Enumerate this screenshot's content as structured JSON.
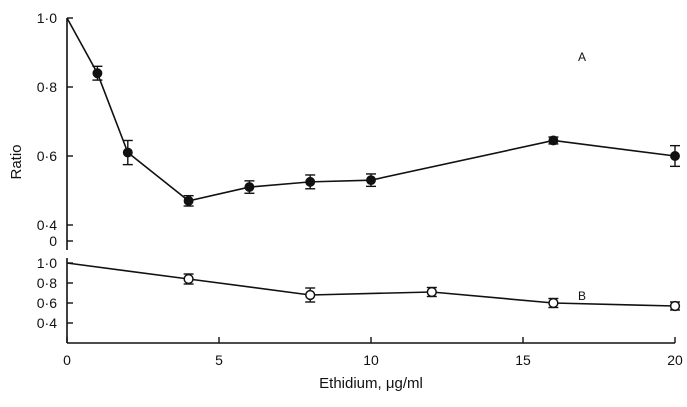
{
  "chart_data": [
    {
      "panel": "A",
      "type": "line",
      "marker": "filled-circle",
      "error_bars": true,
      "ylabel": "Ratio",
      "ylim": [
        0,
        1.0
      ],
      "yticks": [
        "0",
        "0·4",
        "0·6",
        "0·8",
        "1·0"
      ],
      "ytick_values": [
        0,
        0.4,
        0.6,
        0.8,
        1.0
      ],
      "axis_break": true,
      "x": [
        0,
        1,
        2,
        4,
        6,
        8,
        10,
        16,
        20
      ],
      "values": [
        1.0,
        0.84,
        0.61,
        0.47,
        0.51,
        0.525,
        0.53,
        0.645,
        0.6
      ],
      "errors": [
        0,
        0.02,
        0.035,
        0.015,
        0.018,
        0.02,
        0.018,
        0.01,
        0.03
      ]
    },
    {
      "panel": "B",
      "type": "line",
      "marker": "open-circle",
      "error_bars": true,
      "ylim": [
        0.4,
        1.0
      ],
      "yticks": [
        "0·4",
        "0·6",
        "0·8",
        "1·0"
      ],
      "ytick_values": [
        0.4,
        0.6,
        0.8,
        1.0
      ],
      "x": [
        0,
        4,
        8,
        12,
        16,
        20
      ],
      "values": [
        1.0,
        0.84,
        0.68,
        0.71,
        0.6,
        0.57
      ],
      "errors": [
        0,
        0.05,
        0.07,
        0.045,
        0.045,
        0.04
      ]
    }
  ],
  "shared_x": {
    "xlabel": "Ethidium, μg/ml",
    "xlim": [
      0,
      20
    ],
    "xticks": [
      "0",
      "5",
      "10",
      "15",
      "20"
    ],
    "xtick_values": [
      0,
      5,
      10,
      15,
      20
    ]
  }
}
